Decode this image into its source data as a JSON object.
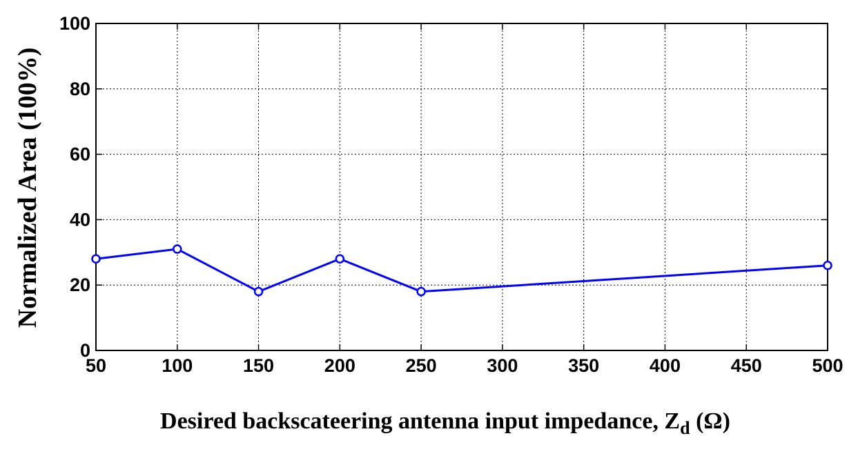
{
  "chart_data": {
    "type": "line",
    "title": "",
    "xlabel": "Desired backscateering antenna input impedance, Z",
    "xlabel_sub": "d",
    "xlabel_unit": " (Ω)",
    "ylabel": "Normalized Area (100%)",
    "xlim": [
      50,
      500
    ],
    "ylim": [
      0,
      100
    ],
    "xticks": [
      50,
      100,
      150,
      200,
      250,
      300,
      350,
      400,
      450,
      500
    ],
    "yticks": [
      0,
      20,
      40,
      60,
      80,
      100
    ],
    "grid": true,
    "series": [
      {
        "x": [
          50,
          100,
          150,
          200,
          250,
          500
        ],
        "y": [
          28,
          31,
          18,
          28,
          18,
          26
        ],
        "color": "#0000ff",
        "marker": "circle"
      }
    ]
  }
}
